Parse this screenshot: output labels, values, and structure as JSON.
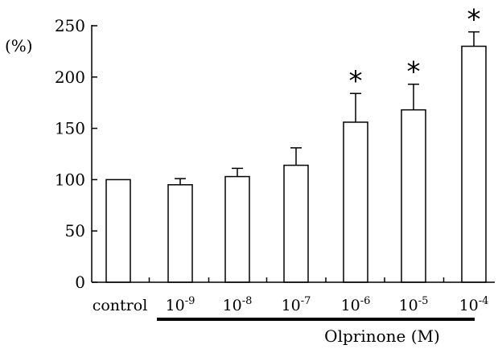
{
  "chart_data": {
    "type": "bar",
    "title": "",
    "ylabel": "(%)",
    "xlabel": "Olprinone (M)",
    "ylim": [
      0,
      250
    ],
    "yticks": [
      0,
      50,
      100,
      150,
      200,
      250
    ],
    "categories": [
      {
        "base": "control",
        "exp": ""
      },
      {
        "base": "10",
        "exp": "-9"
      },
      {
        "base": "10",
        "exp": "-8"
      },
      {
        "base": "10",
        "exp": "-7"
      },
      {
        "base": "10",
        "exp": "-6"
      },
      {
        "base": "10",
        "exp": "-5"
      },
      {
        "base": "10",
        "exp": "-4"
      }
    ],
    "values": [
      100,
      95,
      103,
      114,
      156,
      168,
      230
    ],
    "errors": [
      0,
      6,
      8,
      17,
      28,
      25,
      14
    ],
    "significance_marker": "*",
    "significant": [
      false,
      false,
      false,
      false,
      true,
      true,
      true
    ],
    "bracket_under": "10-9 to 10-4",
    "colors": {
      "bar_fill": "#ffffff",
      "stroke": "#000000"
    }
  }
}
